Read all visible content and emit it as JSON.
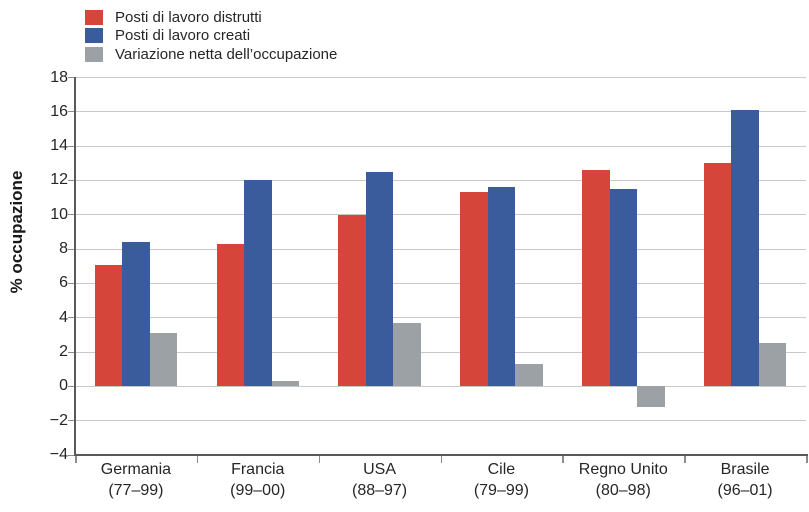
{
  "chart_data": {
    "type": "bar",
    "title": "",
    "ylabel": "% occupazione",
    "xlabel": "",
    "ylim": [
      -4,
      18
    ],
    "yticks": [
      18,
      16,
      14,
      12,
      10,
      8,
      6,
      4,
      2,
      0,
      -2,
      -4
    ],
    "ytick_labels": [
      "18",
      "16",
      "14",
      "12",
      "10",
      "8",
      "6",
      "4",
      "2",
      "0",
      "−2",
      "−4"
    ],
    "grid": true,
    "legend_position": "top-left",
    "categories": [
      {
        "name": "Germania",
        "period": "(77–99)"
      },
      {
        "name": "Francia",
        "period": "(99–00)"
      },
      {
        "name": "USA",
        "period": "(88–97)"
      },
      {
        "name": "Cile",
        "period": "(79–99)"
      },
      {
        "name": "Regno Unito",
        "period": "(80–98)"
      },
      {
        "name": "Brasile",
        "period": "(96–01)"
      }
    ],
    "series": [
      {
        "name": "Posti di lavoro distrutti",
        "color": "#d6453a",
        "values": [
          7.1,
          8.3,
          10.0,
          11.3,
          12.6,
          13.0
        ]
      },
      {
        "name": "Posti di lavoro creati",
        "color": "#3a5b9c",
        "values": [
          8.4,
          12.0,
          12.5,
          11.6,
          11.5,
          16.1
        ]
      },
      {
        "name": "Variazione netta dell’occupazione",
        "color": "#9ca1a5",
        "values": [
          3.1,
          0.3,
          3.7,
          1.3,
          -1.2,
          2.5
        ]
      }
    ]
  },
  "colors": {
    "gridline": "#c9c9c9",
    "axis": "#595959",
    "text": "#262626"
  }
}
